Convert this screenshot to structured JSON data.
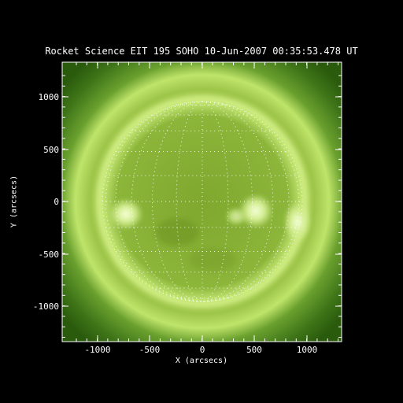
{
  "title": "Rocket Science EIT 195 SOHO 10-Jun-2007 00:35:53.478 UT",
  "xlabel": "X (arcsecs)",
  "ylabel": "Y (arcsecs)",
  "x_ticks": [
    "-1000",
    "-500",
    "0",
    "500",
    "1000"
  ],
  "y_ticks": [
    "1000",
    "500",
    "0",
    "-500",
    "-1000"
  ],
  "colors": {
    "background": "#000000",
    "corona_outer": "#1f4a08",
    "corona_mid": "#4f8a20",
    "disk": "#8fb83a",
    "limb_glow": "#d8f08a",
    "active_region": "#f2ffd0",
    "grid": "#ffffff",
    "axis": "#ffffff"
  }
}
